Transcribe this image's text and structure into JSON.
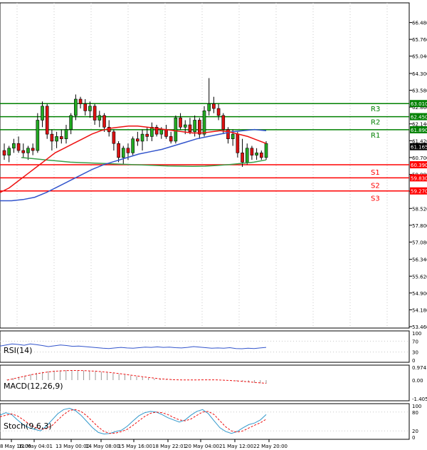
{
  "chart_data": [
    {
      "type": "candlestick",
      "panel": "price",
      "ylim": [
        53.46,
        67.2
      ],
      "yticks": [
        "66.480",
        "65.760",
        "65.040",
        "64.300",
        "63.580",
        "62.860",
        "62.140",
        "61.420",
        "60.700",
        "59.980",
        "59.260",
        "58.520",
        "57.800",
        "57.080",
        "56.340",
        "55.620",
        "54.900",
        "54.180",
        "53.460"
      ],
      "current_price": "61.165",
      "levels": [
        {
          "name": "R3",
          "value": 63.01,
          "label": "63.010",
          "color": "#008000"
        },
        {
          "name": "R2",
          "value": 62.45,
          "label": "62.450",
          "color": "#008000"
        },
        {
          "name": "R1",
          "value": 61.89,
          "label": "61.890",
          "color": "#008000"
        },
        {
          "name": "S1",
          "value": 60.39,
          "label": "60.390",
          "color": "#ff0000"
        },
        {
          "name": "S2",
          "value": 59.83,
          "label": "59.830",
          "color": "#ff0000"
        },
        {
          "name": "S3",
          "value": 59.27,
          "label": "59.270",
          "color": "#ff0000"
        }
      ],
      "candles": [
        [
          61.0,
          61.3,
          60.6,
          60.8
        ],
        [
          60.8,
          61.2,
          60.5,
          61.1
        ],
        [
          61.1,
          61.5,
          60.9,
          61.3
        ],
        [
          61.3,
          61.6,
          60.9,
          61.0
        ],
        [
          61.0,
          61.3,
          60.7,
          60.9
        ],
        [
          60.9,
          61.2,
          60.6,
          61.1
        ],
        [
          61.1,
          61.3,
          60.8,
          61.0
        ],
        [
          61.0,
          62.6,
          60.9,
          62.3
        ],
        [
          62.3,
          63.1,
          62.0,
          62.9
        ],
        [
          62.9,
          63.0,
          61.5,
          61.7
        ],
        [
          61.7,
          61.9,
          61.0,
          61.4
        ],
        [
          61.4,
          61.8,
          61.1,
          61.6
        ],
        [
          61.6,
          61.9,
          61.3,
          61.5
        ],
        [
          61.5,
          62.1,
          61.3,
          61.9
        ],
        [
          61.9,
          62.6,
          61.7,
          62.5
        ],
        [
          62.5,
          63.4,
          62.3,
          63.2
        ],
        [
          63.2,
          63.3,
          62.8,
          63.0
        ],
        [
          63.0,
          63.2,
          62.5,
          62.7
        ],
        [
          62.7,
          63.1,
          62.4,
          62.9
        ],
        [
          62.9,
          63.0,
          62.1,
          62.3
        ],
        [
          62.3,
          62.7,
          62.0,
          62.5
        ],
        [
          62.5,
          62.6,
          61.8,
          62.0
        ],
        [
          62.0,
          62.3,
          61.6,
          61.8
        ],
        [
          61.8,
          61.9,
          61.0,
          61.3
        ],
        [
          61.3,
          61.4,
          60.5,
          60.7
        ],
        [
          60.7,
          61.2,
          60.4,
          61.1
        ],
        [
          61.1,
          61.3,
          60.6,
          60.9
        ],
        [
          60.9,
          61.6,
          60.8,
          61.5
        ],
        [
          61.5,
          61.8,
          61.2,
          61.4
        ],
        [
          61.4,
          61.9,
          61.0,
          61.7
        ],
        [
          61.7,
          62.0,
          61.4,
          61.6
        ],
        [
          61.6,
          62.2,
          61.4,
          62.0
        ],
        [
          62.0,
          62.1,
          61.6,
          61.7
        ],
        [
          61.7,
          62.0,
          61.5,
          61.9
        ],
        [
          61.9,
          62.1,
          61.5,
          61.6
        ],
        [
          61.6,
          61.8,
          61.3,
          61.4
        ],
        [
          61.4,
          62.5,
          61.3,
          62.4
        ],
        [
          62.4,
          62.6,
          61.9,
          62.0
        ],
        [
          62.0,
          62.3,
          61.7,
          62.1
        ],
        [
          62.1,
          62.4,
          61.7,
          61.8
        ],
        [
          61.8,
          62.5,
          61.6,
          62.3
        ],
        [
          62.3,
          62.4,
          61.5,
          61.7
        ],
        [
          61.7,
          62.9,
          61.6,
          62.7
        ],
        [
          62.7,
          64.1,
          62.5,
          63.0
        ],
        [
          63.0,
          63.3,
          62.6,
          62.8
        ],
        [
          62.8,
          63.0,
          62.3,
          62.5
        ],
        [
          62.5,
          62.6,
          61.7,
          61.9
        ],
        [
          61.9,
          62.0,
          61.3,
          61.5
        ],
        [
          61.5,
          61.9,
          61.2,
          61.7
        ],
        [
          61.7,
          61.8,
          60.7,
          60.9
        ],
        [
          60.9,
          61.5,
          60.3,
          60.5
        ],
        [
          60.5,
          61.3,
          60.4,
          61.1
        ],
        [
          61.1,
          61.2,
          60.6,
          60.8
        ],
        [
          60.8,
          61.1,
          60.6,
          60.9
        ],
        [
          60.9,
          61.0,
          60.6,
          60.7
        ],
        [
          60.7,
          61.4,
          60.6,
          61.3
        ]
      ],
      "ma_fast_red": [
        59.2,
        59.4,
        59.7,
        60.0,
        60.3,
        60.6,
        60.9,
        61.1,
        61.3,
        61.5,
        61.7,
        61.85,
        61.95,
        62.0,
        62.05,
        62.05,
        62.0,
        61.95,
        61.9,
        61.85,
        61.8,
        61.75,
        61.75,
        61.8,
        61.85,
        61.8,
        61.7,
        61.6,
        61.45,
        61.3
      ],
      "ma_mid_blue": [
        58.85,
        58.85,
        58.9,
        59.0,
        59.2,
        59.45,
        59.7,
        59.95,
        60.2,
        60.4,
        60.55,
        60.7,
        60.85,
        60.95,
        61.05,
        61.2,
        61.35,
        61.5,
        61.6,
        61.7,
        61.8,
        61.85,
        61.9,
        61.85
      ],
      "ma_slow_green": [
        60.7,
        60.65,
        60.6,
        60.55,
        60.5,
        60.48,
        60.46,
        60.44,
        60.42,
        60.4,
        60.38,
        60.36,
        60.34,
        60.33,
        60.32,
        60.33,
        60.36,
        60.4,
        60.45,
        60.5,
        60.6
      ],
      "xticks": [
        "8 May 16:00",
        "11 May 04:01",
        "13 May 00:00",
        "14 May 08:00",
        "15 May 16:00",
        "18 May 22:01",
        "20 May 04:00",
        "21 May 12:00",
        "22 May 20:00"
      ]
    },
    {
      "type": "line",
      "panel": "RSI",
      "title": "RSI(14)",
      "yticks": [
        "100",
        "70",
        "30",
        "0"
      ],
      "ylim": [
        0,
        100
      ],
      "values": [
        52,
        56,
        60,
        58,
        55,
        60,
        57,
        54,
        50,
        53,
        56,
        54,
        51,
        52,
        50,
        48,
        46,
        44,
        43,
        45,
        47,
        45,
        44,
        46,
        48,
        47,
        49,
        47,
        48,
        46,
        45,
        47,
        50,
        48,
        46,
        44,
        45,
        44,
        46,
        43,
        42,
        44,
        43,
        45,
        47
      ]
    },
    {
      "type": "bar",
      "panel": "MACD",
      "title": "MACD(12,26,9)",
      "yticks": [
        "0.9741",
        "0.00",
        "-1.4051"
      ],
      "ylim": [
        -1.4051,
        0.9741
      ],
      "values": [
        0.05,
        0.15,
        0.25,
        0.35,
        0.45,
        0.55,
        0.62,
        0.68,
        0.72,
        0.74,
        0.75,
        0.75,
        0.74,
        0.72,
        0.7,
        0.66,
        0.62,
        0.57,
        0.52,
        0.46,
        0.4,
        0.34,
        0.28,
        0.22,
        0.16,
        0.12,
        0.08,
        0.05,
        0.03,
        0.01,
        0.0,
        0.0,
        0.01,
        0.02,
        0.02,
        0.01,
        0.0,
        -0.02,
        -0.05,
        -0.08,
        -0.12,
        -0.16,
        -0.2,
        -0.24,
        -0.26
      ],
      "signal": [
        0.0,
        0.1,
        0.2,
        0.3,
        0.4,
        0.48,
        0.56,
        0.62,
        0.67,
        0.7,
        0.72,
        0.73,
        0.73,
        0.72,
        0.7,
        0.68,
        0.64,
        0.6,
        0.55,
        0.5,
        0.44,
        0.38,
        0.32,
        0.26,
        0.2,
        0.15,
        0.1,
        0.07,
        0.04,
        0.02,
        0.01,
        0.01,
        0.01,
        0.02,
        0.02,
        0.02,
        0.01,
        -0.01,
        -0.03,
        -0.06,
        -0.09,
        -0.13,
        -0.17,
        -0.21,
        -0.24
      ]
    },
    {
      "type": "line",
      "panel": "Stochastic",
      "title": "Stoch(9,6,3)",
      "yticks": [
        "100",
        "80",
        "20",
        "0"
      ],
      "ylim": [
        0,
        100
      ],
      "k": [
        70,
        78,
        72,
        55,
        40,
        30,
        25,
        20,
        35,
        55,
        75,
        88,
        92,
        85,
        70,
        50,
        30,
        15,
        10,
        12,
        18,
        22,
        35,
        52,
        68,
        78,
        82,
        80,
        72,
        62,
        55,
        48,
        55,
        70,
        82,
        88,
        75,
        52,
        30,
        18,
        12,
        18,
        30,
        40,
        45,
        55,
        72
      ],
      "d": [
        65,
        70,
        74,
        68,
        56,
        42,
        32,
        25,
        27,
        37,
        55,
        72,
        85,
        88,
        82,
        68,
        50,
        32,
        18,
        12,
        13,
        18,
        25,
        38,
        52,
        66,
        76,
        80,
        78,
        72,
        63,
        55,
        52,
        58,
        69,
        80,
        82,
        72,
        52,
        33,
        20,
        16,
        20,
        29,
        38,
        46,
        57
      ]
    }
  ]
}
